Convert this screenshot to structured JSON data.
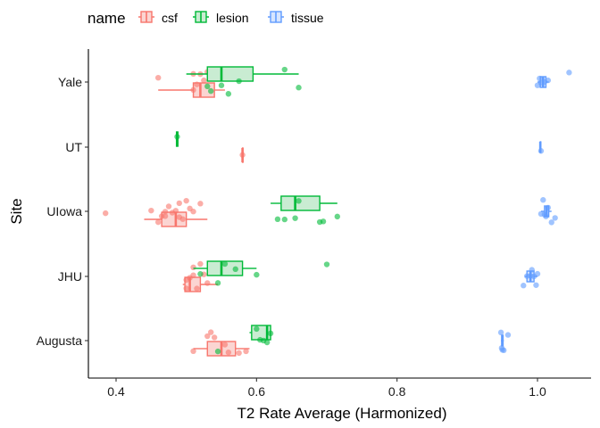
{
  "chart_data": {
    "type": "boxplot",
    "xlabel": "T2 Rate Average (Harmonized)",
    "ylabel": "Site",
    "xlim": [
      0.35,
      1.08
    ],
    "x_ticks": [
      0.4,
      0.6,
      0.8,
      1.0
    ],
    "x_tick_labels": [
      "0.4",
      "0.6",
      "0.8",
      "1.0"
    ],
    "categories": [
      "Augusta",
      "JHU",
      "UIowa",
      "UT",
      "Yale"
    ],
    "grid": false,
    "legend": {
      "title": "name",
      "position": "top-left",
      "entries": [
        "csf",
        "lesion",
        "tissue"
      ]
    },
    "series": [
      {
        "name": "csf",
        "color": "#F8766D",
        "boxes": [
          {
            "site": "Augusta",
            "whisker_low": 0.51,
            "q1": 0.53,
            "median": 0.55,
            "q3": 0.57,
            "whisker_high": 0.59
          },
          {
            "site": "JHU",
            "whisker_low": 0.495,
            "q1": 0.498,
            "median": 0.505,
            "q3": 0.52,
            "whisker_high": 0.545
          },
          {
            "site": "UIowa",
            "whisker_low": 0.44,
            "q1": 0.465,
            "median": 0.485,
            "q3": 0.5,
            "whisker_high": 0.53
          },
          {
            "site": "UT",
            "whisker_low": 0.58,
            "q1": 0.58,
            "median": 0.58,
            "q3": 0.58,
            "whisker_high": 0.58
          },
          {
            "site": "Yale",
            "whisker_low": 0.46,
            "q1": 0.51,
            "median": 0.52,
            "q3": 0.54,
            "whisker_high": 0.555
          }
        ],
        "points": [
          {
            "site": "Augusta",
            "values": [
              0.51,
              0.54,
              0.535,
              0.56,
              0.575,
              0.585,
              0.53,
              0.555
            ]
          },
          {
            "site": "JHU",
            "values": [
              0.5,
              0.505,
              0.51,
              0.52,
              0.515,
              0.525,
              0.5,
              0.53,
              0.51
            ]
          },
          {
            "site": "UIowa",
            "values": [
              0.385,
              0.45,
              0.46,
              0.465,
              0.47,
              0.475,
              0.48,
              0.485,
              0.49,
              0.495,
              0.5,
              0.505,
              0.51,
              0.52,
              0.47,
              0.49
            ]
          },
          {
            "site": "UT",
            "values": [
              0.58
            ]
          },
          {
            "site": "Yale",
            "values": [
              0.46,
              0.51,
              0.515,
              0.52,
              0.525,
              0.53,
              0.54,
              0.51
            ]
          }
        ]
      },
      {
        "name": "lesion",
        "color": "#00BA38",
        "boxes": [
          {
            "site": "Augusta",
            "whisker_low": 0.59,
            "q1": 0.593,
            "median": 0.615,
            "q3": 0.62,
            "whisker_high": 0.62
          },
          {
            "site": "JHU",
            "whisker_low": 0.51,
            "q1": 0.53,
            "median": 0.55,
            "q3": 0.58,
            "whisker_high": 0.6
          },
          {
            "site": "UIowa",
            "whisker_low": 0.62,
            "q1": 0.635,
            "median": 0.655,
            "q3": 0.69,
            "whisker_high": 0.715
          },
          {
            "site": "UT",
            "whisker_low": 0.485,
            "q1": 0.486,
            "median": 0.487,
            "q3": 0.488,
            "whisker_high": 0.489
          },
          {
            "site": "Yale",
            "whisker_low": 0.5,
            "q1": 0.53,
            "median": 0.55,
            "q3": 0.595,
            "whisker_high": 0.66
          }
        ],
        "points": [
          {
            "site": "Augusta",
            "values": [
              0.545,
              0.61,
              0.615,
              0.62,
              0.6,
              0.605
            ]
          },
          {
            "site": "JHU",
            "values": [
              0.52,
              0.545,
              0.555,
              0.57,
              0.6,
              0.7
            ]
          },
          {
            "site": "UIowa",
            "values": [
              0.63,
              0.64,
              0.655,
              0.66,
              0.69,
              0.695,
              0.715
            ]
          },
          {
            "site": "UT",
            "values": [
              0.487
            ]
          },
          {
            "site": "Yale",
            "values": [
              0.53,
              0.535,
              0.55,
              0.56,
              0.575,
              0.64,
              0.66
            ]
          }
        ]
      },
      {
        "name": "tissue",
        "color": "#619CFF",
        "boxes": [
          {
            "site": "Augusta",
            "whisker_low": 0.948,
            "q1": 0.949,
            "median": 0.95,
            "q3": 0.951,
            "whisker_high": 0.952
          },
          {
            "site": "JHU",
            "whisker_low": 0.982,
            "q1": 0.985,
            "median": 0.99,
            "q3": 0.995,
            "whisker_high": 1.0
          },
          {
            "site": "UIowa",
            "whisker_low": 1.005,
            "q1": 1.01,
            "median": 1.013,
            "q3": 1.016,
            "whisker_high": 1.02
          },
          {
            "site": "UT",
            "whisker_low": 1.004,
            "q1": 1.004,
            "median": 1.004,
            "q3": 1.004,
            "whisker_high": 1.004
          },
          {
            "site": "Yale",
            "whisker_low": 1.0,
            "q1": 1.004,
            "median": 1.008,
            "q3": 1.012,
            "whisker_high": 1.016
          }
        ],
        "points": [
          {
            "site": "Augusta",
            "values": [
              0.948,
              0.95,
              0.952,
              0.958,
              0.949
            ]
          },
          {
            "site": "JHU",
            "values": [
              0.98,
              0.985,
              0.99,
              0.995,
              0.998,
              1.0,
              0.992
            ]
          },
          {
            "site": "UIowa",
            "values": [
              1.005,
              1.01,
              1.012,
              1.015,
              1.02,
              1.025,
              1.008
            ]
          },
          {
            "site": "UT",
            "values": [
              1.005
            ]
          },
          {
            "site": "Yale",
            "values": [
              1.0,
              1.005,
              1.01,
              1.015,
              1.045,
              1.003
            ]
          }
        ]
      }
    ]
  }
}
